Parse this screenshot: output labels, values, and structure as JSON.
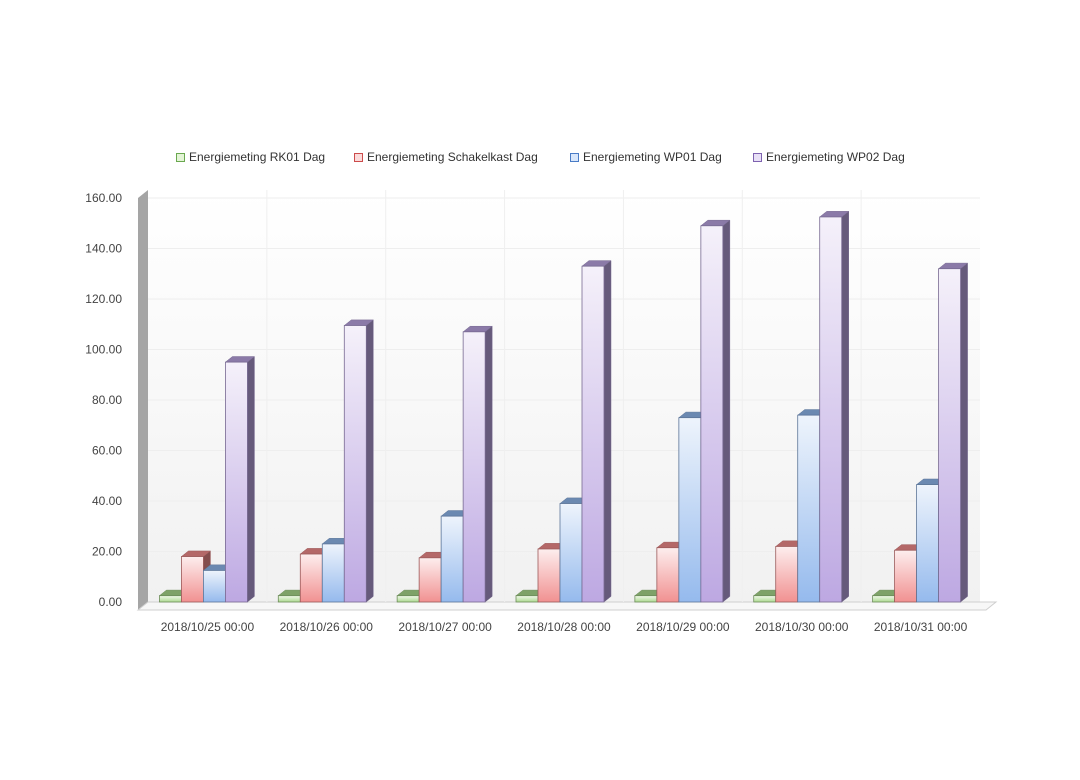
{
  "chart_data": {
    "type": "bar",
    "title": "",
    "xlabel": "",
    "ylabel": "",
    "ylim": [
      0,
      160
    ],
    "yticks": [
      "0.00",
      "20.00",
      "40.00",
      "60.00",
      "80.00",
      "100.00",
      "120.00",
      "140.00",
      "160.00"
    ],
    "grid": true,
    "legend_position": "top",
    "categories": [
      "2018/10/25 00:00",
      "2018/10/26 00:00",
      "2018/10/27 00:00",
      "2018/10/28 00:00",
      "2018/10/29 00:00",
      "2018/10/30 00:00",
      "2018/10/31 00:00"
    ],
    "series": [
      {
        "name": "Energiemeting RK01 Dag",
        "color": "#a8d88a",
        "values": [
          2.5,
          2.5,
          2.5,
          2.5,
          2.5,
          2.5,
          2.5
        ]
      },
      {
        "name": "Energiemeting Schakelkast Dag",
        "color": "#f08b8b",
        "values": [
          18,
          19,
          17.5,
          21,
          21.5,
          22,
          20.5
        ]
      },
      {
        "name": "Energiemeting WP01 Dag",
        "color": "#8fb6ec",
        "values": [
          12.5,
          23,
          34,
          39,
          73,
          74,
          46.5
        ]
      },
      {
        "name": "Energiemeting WP02 Dag",
        "color": "#b9a3e0",
        "values": [
          95,
          109.5,
          107,
          133,
          149,
          152.5,
          132
        ]
      }
    ]
  }
}
